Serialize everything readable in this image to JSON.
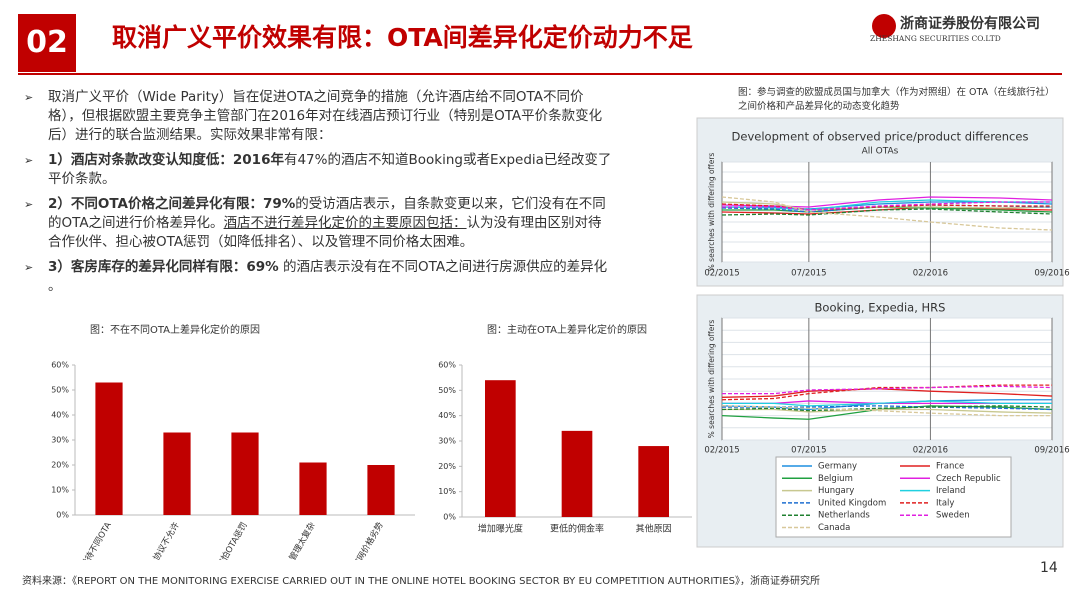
{
  "header": {
    "number": "02",
    "title": "取消广义平价效果有限：OTA间差异化定价动力不足",
    "company": "浙商证券股份有限公司",
    "company_en": "ZHESHANG SECURITIES CO.LTD"
  },
  "bullets": [
    [
      {
        "text": "取消广义平价（Wide Parity）旨在促进OTA之间竞争的措施（允许酒店给不同OTA不同价格），但根据欧盟主要竞争主管部门在2016年对在线酒店预订行业（特别是OTA平价条款变化后）进行的联合监测结果。实际效果非常有限：",
        "style": "normal"
      }
    ],
    [
      {
        "text": "1）酒店对条款改变认知度低：2016年",
        "style": "bold"
      },
      {
        "text": "有47%的酒店不知道Booking或者Expedia已经改变了平价条款。",
        "style": "normal"
      }
    ],
    [
      {
        "text": "2）不同OTA价格之间差异化有限：79%",
        "style": "bold"
      },
      {
        "text": "的受访酒店表示，自条款变更以来，它们没有在不同的OTA之间进行价格差异化。",
        "style": "normal"
      },
      {
        "text": "酒店不进行差异化定价的主要原因包括：",
        "style": "underline"
      },
      {
        "text": "认为没有理由区别对待合作伙伴、担心被OTA惩罚（如降低排名）、以及管理不同价格太困难。",
        "style": "normal"
      }
    ],
    [
      {
        "text": "3）客房库存的差异化同样有限：69%",
        "style": "bold"
      },
      {
        "text": " 的酒店表示没有在不同OTA之间进行房源供应的差异化 。",
        "style": "normal"
      }
    ]
  ],
  "right_caption": "图：参与调查的欧盟成员国与加拿大（作为对照组）在 OTA（在线旅行社）之间价格和产品差异化的动态变化趋势",
  "source": "资料来源：《REPORT ON THE MONITORING EXERCISE CARRIED OUT IN THE ONLINE HOTEL BOOKING SECTOR BY EU COMPETITION AUTHORITIES》，浙商证券研究所",
  "page_number": "14",
  "chart_data": [
    {
      "type": "bar",
      "title": "图：不在不同OTA上差异化定价的原因",
      "categories": [
        "没有原因差异化对待不同OTA",
        "OTA协议不允许",
        "害怕OTA惩罚",
        "管理太复杂",
        "不希望酒店官网价格劣势"
      ],
      "values": [
        53,
        33,
        33,
        21,
        20
      ],
      "color": "#c00000",
      "rotated_labels": true,
      "ylim": [
        0,
        60
      ],
      "yticks": [
        {
          "value": 0,
          "label": "0%"
        },
        {
          "value": 10,
          "label": "10%"
        },
        {
          "value": 20,
          "label": "20%"
        },
        {
          "value": 30,
          "label": "30%"
        },
        {
          "value": 40,
          "label": "40%"
        },
        {
          "value": 50,
          "label": "50%"
        },
        {
          "value": 60,
          "label": "60%"
        }
      ]
    },
    {
      "type": "bar",
      "title": "图：主动在OTA上差异化定价的原因",
      "categories": [
        "增加曝光度",
        "更低的佣金率",
        "其他原因"
      ],
      "values": [
        54,
        34,
        28
      ],
      "color": "#c00000",
      "rotated_labels": false,
      "ylim": [
        0,
        60
      ],
      "yticks": [
        {
          "value": 0,
          "label": "0%"
        },
        {
          "value": 10,
          "label": "10%"
        },
        {
          "value": 20,
          "label": "20%"
        },
        {
          "value": 30,
          "label": "30%"
        },
        {
          "value": 40,
          "label": "40%"
        },
        {
          "value": 50,
          "label": "50%"
        },
        {
          "value": 60,
          "label": "60%"
        }
      ]
    },
    {
      "type": "line",
      "title": "Development of observed price/product differences",
      "subtitle": "All OTAs",
      "y_label": "% searches with differing offers",
      "grid": true,
      "show_ytick_labels": false,
      "x": [
        "02/2015",
        "05/2015",
        "07/2015",
        "11/2015",
        "02/2016",
        "06/2016",
        "09/2016"
      ],
      "xlim": [
        "02/2015",
        "09/2016"
      ],
      "xticks": [
        "02/2015",
        "07/2015",
        "02/2016",
        "09/2016"
      ],
      "ylim": [
        0,
        1
      ],
      "yticks": [
        0,
        0.1,
        0.2,
        0.3,
        0.4,
        0.5,
        0.6,
        0.7,
        0.8,
        0.9,
        1
      ],
      "series": [
        {
          "name": "Germany",
          "color": "#1f8fe0",
          "dash": false,
          "values": [
            0.55,
            0.55,
            0.53,
            0.58,
            0.6,
            0.6,
            0.58
          ]
        },
        {
          "name": "France",
          "color": "#e02020",
          "dash": false,
          "values": [
            0.5,
            0.49,
            0.48,
            0.52,
            0.55,
            0.53,
            0.52
          ]
        },
        {
          "name": "Belgium",
          "color": "#20a040",
          "dash": false,
          "values": [
            0.52,
            0.52,
            0.5,
            0.55,
            0.54,
            0.52,
            0.5
          ]
        },
        {
          "name": "Czech Republic",
          "color": "#e020e0",
          "dash": false,
          "values": [
            0.57,
            0.56,
            0.55,
            0.62,
            0.65,
            0.64,
            0.62
          ]
        },
        {
          "name": "Hungary",
          "color": "#c8c890",
          "dash": false,
          "values": [
            0.6,
            0.58,
            0.52,
            0.55,
            0.55,
            0.54,
            0.55
          ]
        },
        {
          "name": "Ireland",
          "color": "#20d0e0",
          "dash": false,
          "values": [
            0.55,
            0.54,
            0.52,
            0.6,
            0.62,
            0.6,
            0.6
          ]
        },
        {
          "name": "United Kingdom",
          "color": "#1f6fd0",
          "dash": true,
          "values": [
            0.54,
            0.53,
            0.5,
            0.55,
            0.57,
            0.56,
            0.55
          ]
        },
        {
          "name": "Italy",
          "color": "#e02020",
          "dash": true,
          "values": [
            0.58,
            0.56,
            0.52,
            0.55,
            0.57,
            0.56,
            0.56
          ]
        },
        {
          "name": "Netherlands",
          "color": "#208030",
          "dash": true,
          "values": [
            0.47,
            0.48,
            0.47,
            0.52,
            0.53,
            0.5,
            0.48
          ]
        },
        {
          "name": "Sweden",
          "color": "#e020e0",
          "dash": true,
          "values": [
            0.55,
            0.55,
            0.52,
            0.56,
            0.58,
            0.6,
            0.6
          ]
        },
        {
          "name": "Canada",
          "color": "#d8c89a",
          "dash": true,
          "values": [
            0.65,
            0.6,
            0.5,
            0.45,
            0.4,
            0.34,
            0.32
          ]
        }
      ]
    },
    {
      "type": "line",
      "title": "Booking, Expedia, HRS",
      "y_label": "% searches with differing offers",
      "grid": true,
      "show_ytick_labels": false,
      "legend": "bottom",
      "x": [
        "02/2015",
        "05/2015",
        "07/2015",
        "11/2015",
        "02/2016",
        "06/2016",
        "09/2016"
      ],
      "xlim": [
        "02/2015",
        "09/2016"
      ],
      "xticks": [
        "02/2015",
        "07/2015",
        "02/2016",
        "09/2016"
      ],
      "ylim": [
        0,
        1
      ],
      "yticks": [
        0,
        0.1,
        0.2,
        0.3,
        0.4,
        0.5,
        0.6,
        0.7,
        0.8,
        0.9,
        1
      ],
      "series": [
        {
          "name": "Germany",
          "color": "#1f8fe0",
          "dash": false,
          "values": [
            0.28,
            0.27,
            0.25,
            0.3,
            0.32,
            0.33,
            0.33
          ]
        },
        {
          "name": "France",
          "color": "#e02020",
          "dash": false,
          "values": [
            0.35,
            0.36,
            0.4,
            0.42,
            0.4,
            0.38,
            0.36
          ]
        },
        {
          "name": "Belgium",
          "color": "#20a040",
          "dash": false,
          "values": [
            0.2,
            0.18,
            0.17,
            0.25,
            0.28,
            0.27,
            0.25
          ]
        },
        {
          "name": "Czech Republic",
          "color": "#e020e0",
          "dash": false,
          "values": [
            0.3,
            0.3,
            0.32,
            0.3,
            0.3,
            0.3,
            0.3
          ]
        },
        {
          "name": "Hungary",
          "color": "#c8c890",
          "dash": false,
          "values": [
            0.25,
            0.25,
            0.23,
            0.25,
            0.25,
            0.23,
            0.22
          ]
        },
        {
          "name": "Ireland",
          "color": "#20d0e0",
          "dash": false,
          "values": [
            0.3,
            0.3,
            0.28,
            0.3,
            0.32,
            0.3,
            0.3
          ]
        },
        {
          "name": "United Kingdom",
          "color": "#1f6fd0",
          "dash": true,
          "values": [
            0.27,
            0.27,
            0.27,
            0.28,
            0.27,
            0.26,
            0.25
          ]
        },
        {
          "name": "Italy",
          "color": "#e02020",
          "dash": true,
          "values": [
            0.33,
            0.34,
            0.38,
            0.43,
            0.43,
            0.45,
            0.45
          ]
        },
        {
          "name": "Netherlands",
          "color": "#208030",
          "dash": true,
          "values": [
            0.25,
            0.26,
            0.24,
            0.26,
            0.27,
            0.28,
            0.27
          ]
        },
        {
          "name": "Sweden",
          "color": "#e020e0",
          "dash": true,
          "values": [
            0.38,
            0.38,
            0.41,
            0.42,
            0.43,
            0.44,
            0.43
          ]
        },
        {
          "name": "Canada",
          "color": "#d8c89a",
          "dash": true,
          "values": [
            0.28,
            0.27,
            0.26,
            0.24,
            0.22,
            0.2,
            0.2
          ]
        }
      ]
    }
  ]
}
